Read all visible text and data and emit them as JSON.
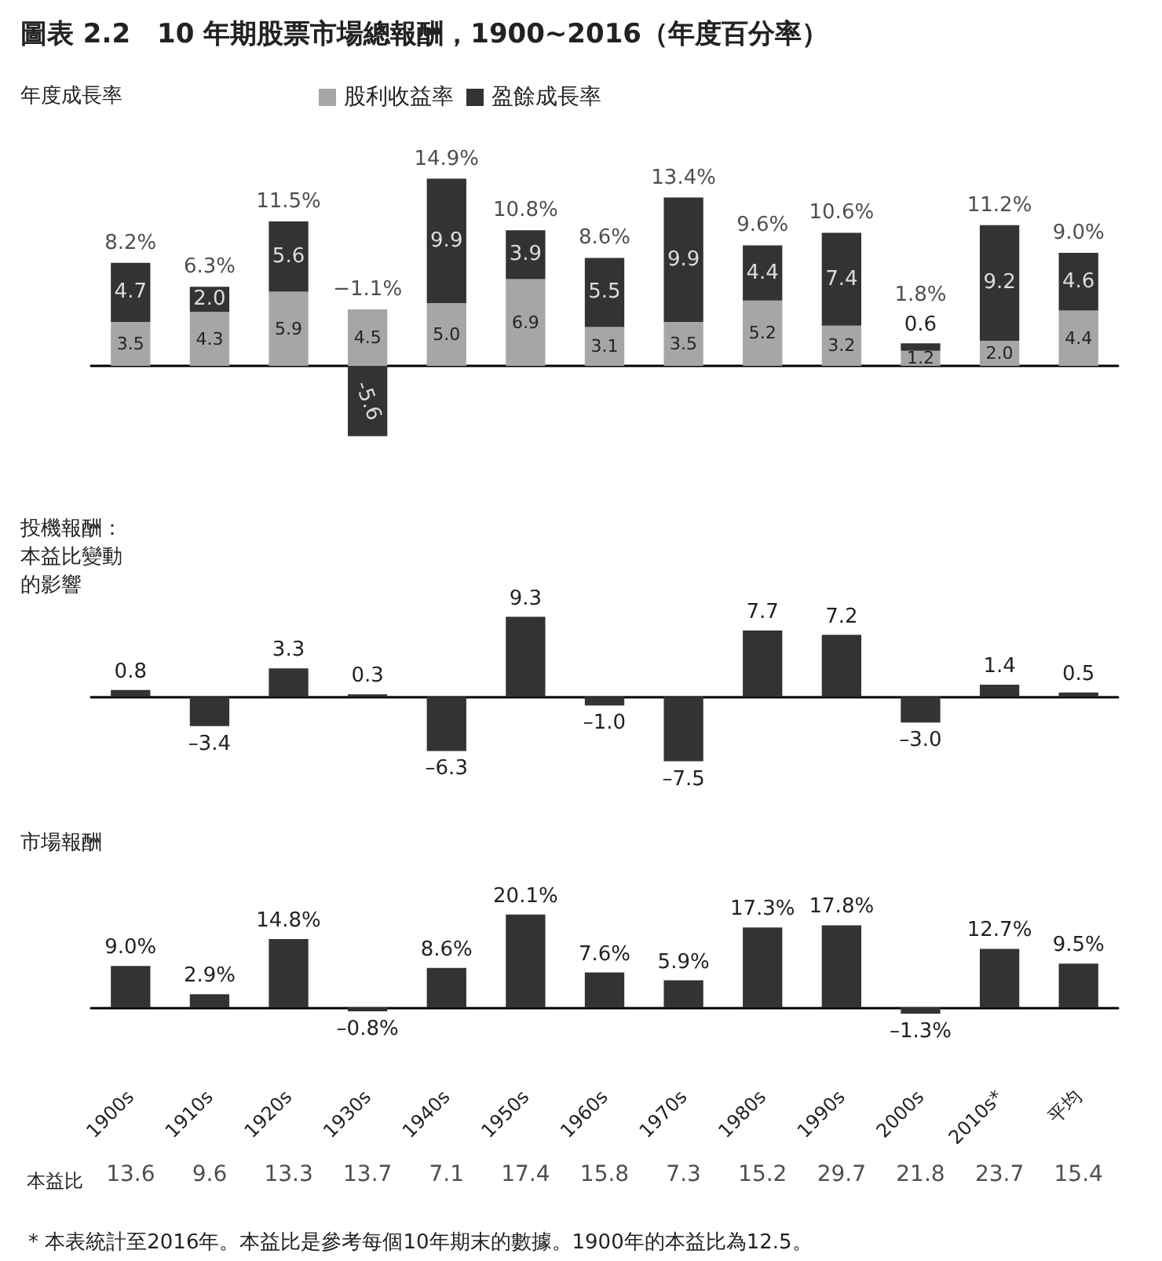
{
  "chart_data": [
    {
      "type": "bar",
      "title": "圖表 2.2　10 年期股票市場總報酬，1900~2016（年度百分率）",
      "subtitle": "年度成長率",
      "categories": [
        null,
        null,
        null,
        null,
        null,
        null,
        null,
        null,
        null,
        null,
        null,
        null,
        null
      ],
      "stacked": true,
      "series": [
        {
          "name": "股利收益率",
          "color": "#a6a6a6",
          "values": [
            3.5,
            4.3,
            5.9,
            4.5,
            5.0,
            6.9,
            3.1,
            3.5,
            5.2,
            3.2,
            1.2,
            2.0,
            4.4
          ],
          "value_labels": [
            "3.5",
            "4.3",
            "5.9",
            "4.5",
            "5.0",
            "6.9",
            "3.1",
            "3.5",
            "5.2",
            "3.2",
            "1.2",
            "2.0",
            "4.4"
          ]
        },
        {
          "name": "盈餘成長率",
          "color": "#333333",
          "values": [
            4.7,
            2.0,
            5.6,
            -5.6,
            9.9,
            3.9,
            5.5,
            9.9,
            4.4,
            7.4,
            0.6,
            9.2,
            4.6
          ],
          "value_labels": [
            "4.7",
            "2.0",
            "5.6",
            "-5.6",
            "9.9",
            "3.9",
            "5.5",
            "9.9",
            "4.4",
            "7.4",
            "0.6",
            "9.2",
            "4.6"
          ]
        }
      ],
      "totals": [
        "8.2%",
        "6.3%",
        "11.5%",
        "−1.1%",
        "14.9%",
        "10.8%",
        "8.6%",
        "13.4%",
        "9.6%",
        "10.6%",
        "1.8%",
        "11.2%",
        "9.0%"
      ],
      "legend": "top",
      "tick_labels": false
    },
    {
      "type": "bar",
      "title": "投機報酬：本益比變動的影響",
      "categories": [
        null,
        null,
        null,
        null,
        null,
        null,
        null,
        null,
        null,
        null,
        null,
        null,
        null
      ],
      "values": [
        0.8,
        -3.4,
        3.3,
        0.3,
        -6.3,
        9.3,
        -1.0,
        -7.5,
        7.7,
        7.2,
        -3.0,
        1.4,
        0.5
      ],
      "color": "#333333",
      "value_labels": [
        "0.8",
        "–3.4",
        "3.3",
        "0.3",
        "–6.3",
        "9.3",
        "–1.0",
        "–7.5",
        "7.7",
        "7.2",
        "–3.0",
        "1.4",
        "0.5"
      ],
      "tick_labels": false
    },
    {
      "type": "bar",
      "title": "市場報酬",
      "categories": [
        "1900s",
        "1910s",
        "1920s",
        "1930s",
        "1940s",
        "1950s",
        "1960s",
        "1970s",
        "1980s",
        "1990s",
        "2000s",
        "2010s*",
        "平均"
      ],
      "values": [
        9.0,
        2.9,
        14.8,
        -0.8,
        8.6,
        20.1,
        7.6,
        5.9,
        17.3,
        17.8,
        -1.3,
        12.7,
        9.5
      ],
      "color": "#333333",
      "value_labels": [
        "9.0%",
        "2.9%",
        "14.8%",
        "–0.8%",
        "8.6%",
        "20.1%",
        "7.6%",
        "5.9%",
        "17.3%",
        "17.8%",
        "–1.3%",
        "12.7%",
        "9.5%"
      ],
      "tick_labels": "x"
    },
    {
      "type": "other",
      "title": "本益比",
      "values": [
        13.6,
        9.6,
        13.3,
        13.7,
        7.1,
        17.4,
        15.8,
        7.3,
        15.2,
        29.7,
        21.8,
        23.7,
        15.4
      ],
      "data_labels": true,
      "annotations": [
        "* 本表統計至2016年。本益比是參考每個10年期末的數據。1900年的本益比為12.5。"
      ]
    }
  ]
}
